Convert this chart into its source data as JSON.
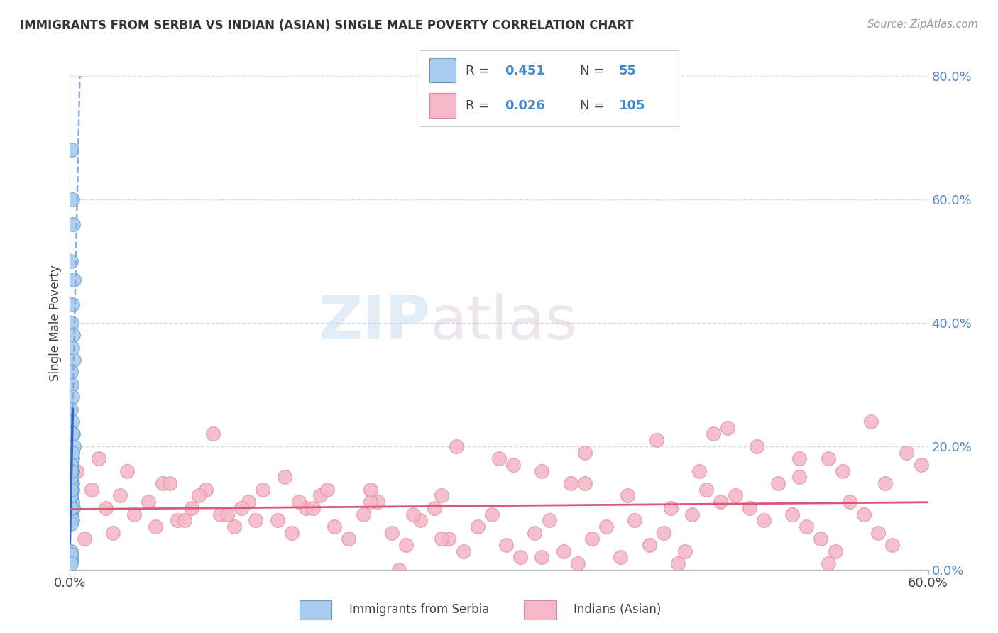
{
  "title": "IMMIGRANTS FROM SERBIA VS INDIAN (ASIAN) SINGLE MALE POVERTY CORRELATION CHART",
  "source": "Source: ZipAtlas.com",
  "ylabel": "Single Male Poverty",
  "watermark_zip": "ZIP",
  "watermark_atlas": "atlas",
  "serbia_color": "#aaccee",
  "serbia_edge": "#6699cc",
  "serbia_line_color": "#3366bb",
  "serbia_line_dash_color": "#88aadd",
  "india_color": "#f5b8c8",
  "india_edge": "#dd8899",
  "india_line_color": "#dd5577",
  "xlim": [
    0.0,
    0.6
  ],
  "ylim": [
    0.0,
    0.8
  ],
  "ytick_vals": [
    0.0,
    0.2,
    0.4,
    0.6,
    0.8
  ],
  "ytick_labels": [
    "0.0%",
    "20.0%",
    "40.0%",
    "60.0%",
    "80.0%"
  ],
  "xtick_vals": [
    0.0,
    0.6
  ],
  "xtick_labels": [
    "0.0%",
    "60.0%"
  ],
  "serbia_x": [
    0.0015,
    0.002,
    0.0025,
    0.001,
    0.003,
    0.0018,
    0.0012,
    0.0022,
    0.0016,
    0.0028,
    0.001,
    0.0015,
    0.002,
    0.001,
    0.0018,
    0.0022,
    0.003,
    0.0016,
    0.001,
    0.002,
    0.001,
    0.0015,
    0.002,
    0.001,
    0.0018,
    0.0022,
    0.001,
    0.0015,
    0.002,
    0.001,
    0.0015,
    0.001,
    0.002,
    0.0015,
    0.001,
    0.0018,
    0.002,
    0.001,
    0.0015,
    0.001,
    0.001,
    0.001,
    0.0015,
    0.001,
    0.001,
    0.001,
    0.001,
    0.001,
    0.001,
    0.001,
    0.001,
    0.001,
    0.001,
    0.001,
    0.001
  ],
  "serbia_y": [
    0.68,
    0.6,
    0.56,
    0.5,
    0.47,
    0.43,
    0.4,
    0.38,
    0.36,
    0.34,
    0.32,
    0.3,
    0.28,
    0.26,
    0.24,
    0.22,
    0.2,
    0.18,
    0.17,
    0.16,
    0.15,
    0.14,
    0.13,
    0.12,
    0.11,
    0.1,
    0.09,
    0.085,
    0.08,
    0.075,
    0.18,
    0.16,
    0.14,
    0.12,
    0.1,
    0.19,
    0.22,
    0.13,
    0.15,
    0.17,
    0.16,
    0.14,
    0.13,
    0.12,
    0.16,
    0.14,
    0.13,
    0.17,
    0.15,
    0.16,
    0.02,
    0.03,
    0.015,
    0.025,
    0.01
  ],
  "india_x": [
    0.005,
    0.015,
    0.025,
    0.035,
    0.045,
    0.055,
    0.065,
    0.075,
    0.085,
    0.095,
    0.105,
    0.115,
    0.125,
    0.135,
    0.145,
    0.155,
    0.165,
    0.175,
    0.185,
    0.195,
    0.205,
    0.215,
    0.225,
    0.235,
    0.245,
    0.255,
    0.265,
    0.275,
    0.285,
    0.295,
    0.305,
    0.315,
    0.325,
    0.335,
    0.345,
    0.355,
    0.365,
    0.375,
    0.385,
    0.395,
    0.405,
    0.415,
    0.425,
    0.435,
    0.445,
    0.455,
    0.465,
    0.475,
    0.485,
    0.495,
    0.505,
    0.515,
    0.525,
    0.535,
    0.545,
    0.555,
    0.565,
    0.575,
    0.585,
    0.595,
    0.02,
    0.04,
    0.07,
    0.09,
    0.12,
    0.15,
    0.18,
    0.21,
    0.24,
    0.27,
    0.3,
    0.33,
    0.36,
    0.39,
    0.42,
    0.45,
    0.48,
    0.51,
    0.54,
    0.57,
    0.01,
    0.06,
    0.11,
    0.16,
    0.21,
    0.26,
    0.31,
    0.36,
    0.41,
    0.46,
    0.51,
    0.56,
    0.08,
    0.17,
    0.26,
    0.35,
    0.44,
    0.53,
    0.03,
    0.13,
    0.23,
    0.33,
    0.43,
    0.53,
    0.1
  ],
  "india_y": [
    0.16,
    0.13,
    0.1,
    0.12,
    0.09,
    0.11,
    0.14,
    0.08,
    0.1,
    0.13,
    0.09,
    0.07,
    0.11,
    0.13,
    0.08,
    0.06,
    0.1,
    0.12,
    0.07,
    0.05,
    0.09,
    0.11,
    0.06,
    0.04,
    0.08,
    0.1,
    0.05,
    0.03,
    0.07,
    0.09,
    0.04,
    0.02,
    0.06,
    0.08,
    0.03,
    0.01,
    0.05,
    0.07,
    0.02,
    0.08,
    0.04,
    0.06,
    0.01,
    0.09,
    0.13,
    0.11,
    0.12,
    0.1,
    0.08,
    0.14,
    0.09,
    0.07,
    0.05,
    0.03,
    0.11,
    0.09,
    0.06,
    0.04,
    0.19,
    0.17,
    0.18,
    0.16,
    0.14,
    0.12,
    0.1,
    0.15,
    0.13,
    0.11,
    0.09,
    0.2,
    0.18,
    0.16,
    0.14,
    0.12,
    0.1,
    0.22,
    0.2,
    0.18,
    0.16,
    0.14,
    0.05,
    0.07,
    0.09,
    0.11,
    0.13,
    0.05,
    0.17,
    0.19,
    0.21,
    0.23,
    0.15,
    0.24,
    0.08,
    0.1,
    0.12,
    0.14,
    0.16,
    0.18,
    0.06,
    0.08,
    0.0,
    0.02,
    0.03,
    0.01,
    0.22
  ]
}
